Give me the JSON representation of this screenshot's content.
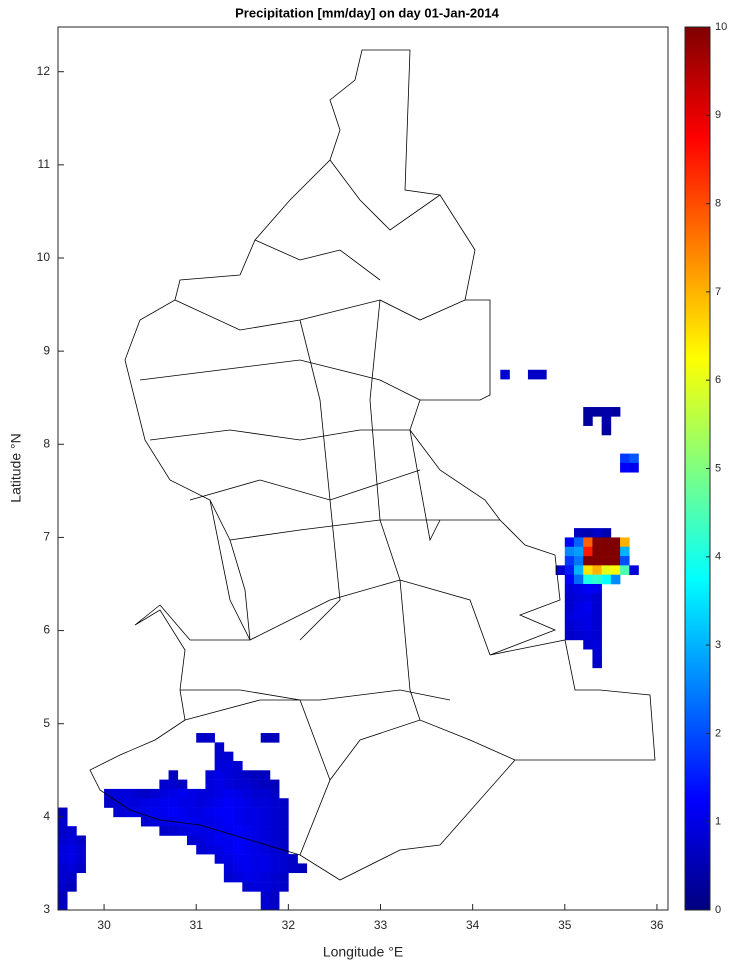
{
  "chart_data": {
    "type": "gridmap",
    "title": "Precipitation [mm/day] on day 01-Jan-2014",
    "xlabel": "Longitude °E",
    "ylabel": "Latitude °N",
    "xlim": [
      29.5,
      36.12
    ],
    "ylim": [
      3,
      12.48
    ],
    "xticks": [
      30,
      31,
      32,
      33,
      34,
      35,
      36
    ],
    "yticks": [
      3,
      4,
      5,
      6,
      7,
      8,
      9,
      10,
      11,
      12
    ],
    "colormap": "jet",
    "clim": [
      0,
      10
    ],
    "cticks": [
      0,
      1,
      2,
      3,
      4,
      5,
      6,
      7,
      8,
      9,
      10
    ],
    "cells": [
      {
        "lat": 4.85,
        "lon0": 31.05,
        "values": [
          0.7,
          0.7
        ]
      },
      {
        "lat": 4.85,
        "lon0": 31.75,
        "values": [
          0.6,
          0.6
        ]
      },
      {
        "lat": 4.75,
        "lon0": 31.25,
        "values": [
          0.8
        ]
      },
      {
        "lat": 4.65,
        "lon0": 31.25,
        "values": [
          0.8,
          0.8
        ]
      },
      {
        "lat": 4.55,
        "lon0": 31.25,
        "values": [
          0.9,
          0.9,
          0.8
        ]
      },
      {
        "lat": 4.45,
        "lon0": 30.75,
        "values": [
          0.6
        ]
      },
      {
        "lat": 4.45,
        "lon0": 31.15,
        "values": [
          0.9,
          1,
          0.9,
          0.8,
          0.7,
          0.6,
          0.6
        ]
      },
      {
        "lat": 4.35,
        "lon0": 30.65,
        "values": [
          0.8,
          0.8,
          0.7
        ]
      },
      {
        "lat": 4.35,
        "lon0": 31.15,
        "values": [
          0.9,
          1,
          0.9,
          0.8,
          0.8,
          0.7,
          0.6,
          0.6
        ]
      },
      {
        "lat": 4.25,
        "lon0": 30.05,
        "values": [
          0.8,
          0.9,
          0.9,
          0.8,
          0.7,
          0.8,
          0.9,
          1,
          1.1,
          1,
          0.9,
          0.9,
          1,
          1.1,
          1,
          0.9,
          0.8,
          0.8,
          0.7
        ]
      },
      {
        "lat": 4.15,
        "lon0": 30.05,
        "values": [
          0.7,
          0.8,
          0.9,
          0.9,
          1,
          1,
          1.1,
          1.1,
          1,
          1,
          0.9,
          1,
          1.1,
          1.2,
          1.1,
          1,
          0.9,
          0.9,
          0.8,
          0.7
        ]
      },
      {
        "lat": 4.05,
        "lon0": 30.15,
        "values": [
          0.8,
          0.9,
          1,
          1,
          1.1,
          1.1,
          1.2,
          1.1,
          1,
          1,
          1.1,
          1.2,
          1.2,
          1.1,
          1,
          1,
          0.9,
          0.8,
          0.7
        ]
      },
      {
        "lat": 3.95,
        "lon0": 30.45,
        "values": [
          0.8,
          0.9,
          1,
          1,
          1.1,
          1.1,
          1,
          1,
          1.1,
          1.2,
          1.1,
          1,
          1,
          0.9,
          0.8,
          0.7
        ]
      },
      {
        "lat": 3.85,
        "lon0": 30.65,
        "values": [
          0.7,
          0.8,
          0.9,
          1,
          1,
          1,
          1.1,
          1.1,
          1.2,
          1.1,
          1,
          0.9,
          0.8,
          0.7
        ]
      },
      {
        "lat": 3.75,
        "lon0": 30.95,
        "values": [
          0.8,
          0.9,
          1,
          1.1,
          1.1,
          1.2,
          1.1,
          1,
          0.9,
          0.8,
          0.7
        ]
      },
      {
        "lat": 3.65,
        "lon0": 31.05,
        "values": [
          0.8,
          0.9,
          1,
          1.1,
          1.2,
          1.1,
          1,
          0.9,
          0.8,
          0.7
        ]
      },
      {
        "lat": 3.55,
        "lon0": 31.25,
        "values": [
          0.9,
          1,
          1.1,
          1.1,
          1,
          1,
          0.9,
          0.8,
          0.7
        ]
      },
      {
        "lat": 3.45,
        "lon0": 31.35,
        "values": [
          0.9,
          1,
          1.1,
          1,
          1,
          0.9,
          0.8,
          0.7,
          0.6
        ]
      },
      {
        "lat": 3.35,
        "lon0": 31.35,
        "values": [
          0.8,
          0.9,
          1,
          1,
          0.9,
          0.8,
          0.7
        ]
      },
      {
        "lat": 3.25,
        "lon0": 31.55,
        "values": [
          0.8,
          0.9,
          0.9,
          0.8,
          0.7
        ]
      },
      {
        "lat": 3.15,
        "lon0": 31.75,
        "values": [
          0.8,
          0.7
        ]
      },
      {
        "lat": 3.05,
        "lon0": 31.75,
        "values": [
          0.8,
          0.7
        ]
      },
      {
        "lat": 4.05,
        "lon0": 29.55,
        "values": [
          0.6
        ]
      },
      {
        "lat": 3.95,
        "lon0": 29.55,
        "values": [
          0.7
        ]
      },
      {
        "lat": 3.85,
        "lon0": 29.55,
        "values": [
          0.7,
          0.8
        ]
      },
      {
        "lat": 3.75,
        "lon0": 29.55,
        "values": [
          0.8,
          0.9,
          0.7
        ]
      },
      {
        "lat": 3.65,
        "lon0": 29.55,
        "values": [
          0.9,
          1,
          0.8
        ]
      },
      {
        "lat": 3.55,
        "lon0": 29.55,
        "values": [
          0.9,
          1,
          0.8
        ]
      },
      {
        "lat": 3.45,
        "lon0": 29.55,
        "values": [
          0.8,
          0.9,
          0.7
        ]
      },
      {
        "lat": 3.35,
        "lon0": 29.55,
        "values": [
          0.8,
          0.7
        ]
      },
      {
        "lat": 3.25,
        "lon0": 29.55,
        "values": [
          0.7,
          0.6
        ]
      },
      {
        "lat": 3.15,
        "lon0": 29.55,
        "values": [
          0.6
        ]
      },
      {
        "lat": 3.05,
        "lon0": 29.55,
        "values": [
          0.6
        ]
      },
      {
        "lat": 8.75,
        "lon0": 34.35,
        "values": [
          0.8
        ]
      },
      {
        "lat": 8.75,
        "lon0": 34.65,
        "values": [
          0.7,
          0.7
        ]
      },
      {
        "lat": 8.35,
        "lon0": 35.25,
        "values": [
          0.3,
          0.3,
          0.4,
          0.3
        ]
      },
      {
        "lat": 8.25,
        "lon0": 35.25,
        "values": [
          0.3
        ]
      },
      {
        "lat": 8.25,
        "lon0": 35.45,
        "values": [
          0.4
        ]
      },
      {
        "lat": 8.15,
        "lon0": 35.45,
        "values": [
          0.3
        ]
      },
      {
        "lat": 7.85,
        "lon0": 35.65,
        "values": [
          1.8,
          2.1
        ]
      },
      {
        "lat": 7.75,
        "lon0": 35.65,
        "values": [
          1.2,
          1.1
        ]
      },
      {
        "lat": 7.05,
        "lon0": 35.15,
        "values": [
          0.6,
          0.5,
          0.7,
          0.5
        ]
      },
      {
        "lat": 6.95,
        "lon0": 35.05,
        "values": [
          1.2,
          2.2,
          7.8,
          10,
          10,
          10,
          7
        ]
      },
      {
        "lat": 6.85,
        "lon0": 35.05,
        "values": [
          2.6,
          2.8,
          8.5,
          10,
          10,
          10,
          3
        ]
      },
      {
        "lat": 6.75,
        "lon0": 35.05,
        "values": [
          1.8,
          2.4,
          10,
          10,
          10,
          10,
          2
        ]
      },
      {
        "lat": 6.65,
        "lon0": 34.95,
        "values": [
          0.8,
          1.5,
          3,
          6.5,
          7,
          6,
          6.2,
          4.5,
          0.9
        ]
      },
      {
        "lat": 6.55,
        "lon0": 35.05,
        "values": [
          1.2,
          2.3,
          4,
          4.2,
          3.8,
          2.6
        ]
      },
      {
        "lat": 6.45,
        "lon0": 35.05,
        "values": [
          0.9,
          1,
          1.2,
          1.1
        ]
      },
      {
        "lat": 6.35,
        "lon0": 35.05,
        "values": [
          0.8,
          0.9,
          1,
          0.8
        ]
      },
      {
        "lat": 6.25,
        "lon0": 35.05,
        "values": [
          0.8,
          1,
          1.1,
          0.8
        ]
      },
      {
        "lat": 6.15,
        "lon0": 35.05,
        "values": [
          0.9,
          1,
          1,
          0.8
        ]
      },
      {
        "lat": 6.05,
        "lon0": 35.05,
        "values": [
          0.8,
          0.9,
          1,
          0.8
        ]
      },
      {
        "lat": 5.95,
        "lon0": 35.05,
        "values": [
          0.7,
          0.8,
          0.9,
          0.8
        ]
      },
      {
        "lat": 5.85,
        "lon0": 35.25,
        "values": [
          0.8,
          0.9
        ]
      },
      {
        "lat": 5.75,
        "lon0": 35.35,
        "values": [
          0.8
        ]
      },
      {
        "lat": 5.65,
        "lon0": 35.35,
        "values": [
          0.7
        ]
      }
    ]
  }
}
